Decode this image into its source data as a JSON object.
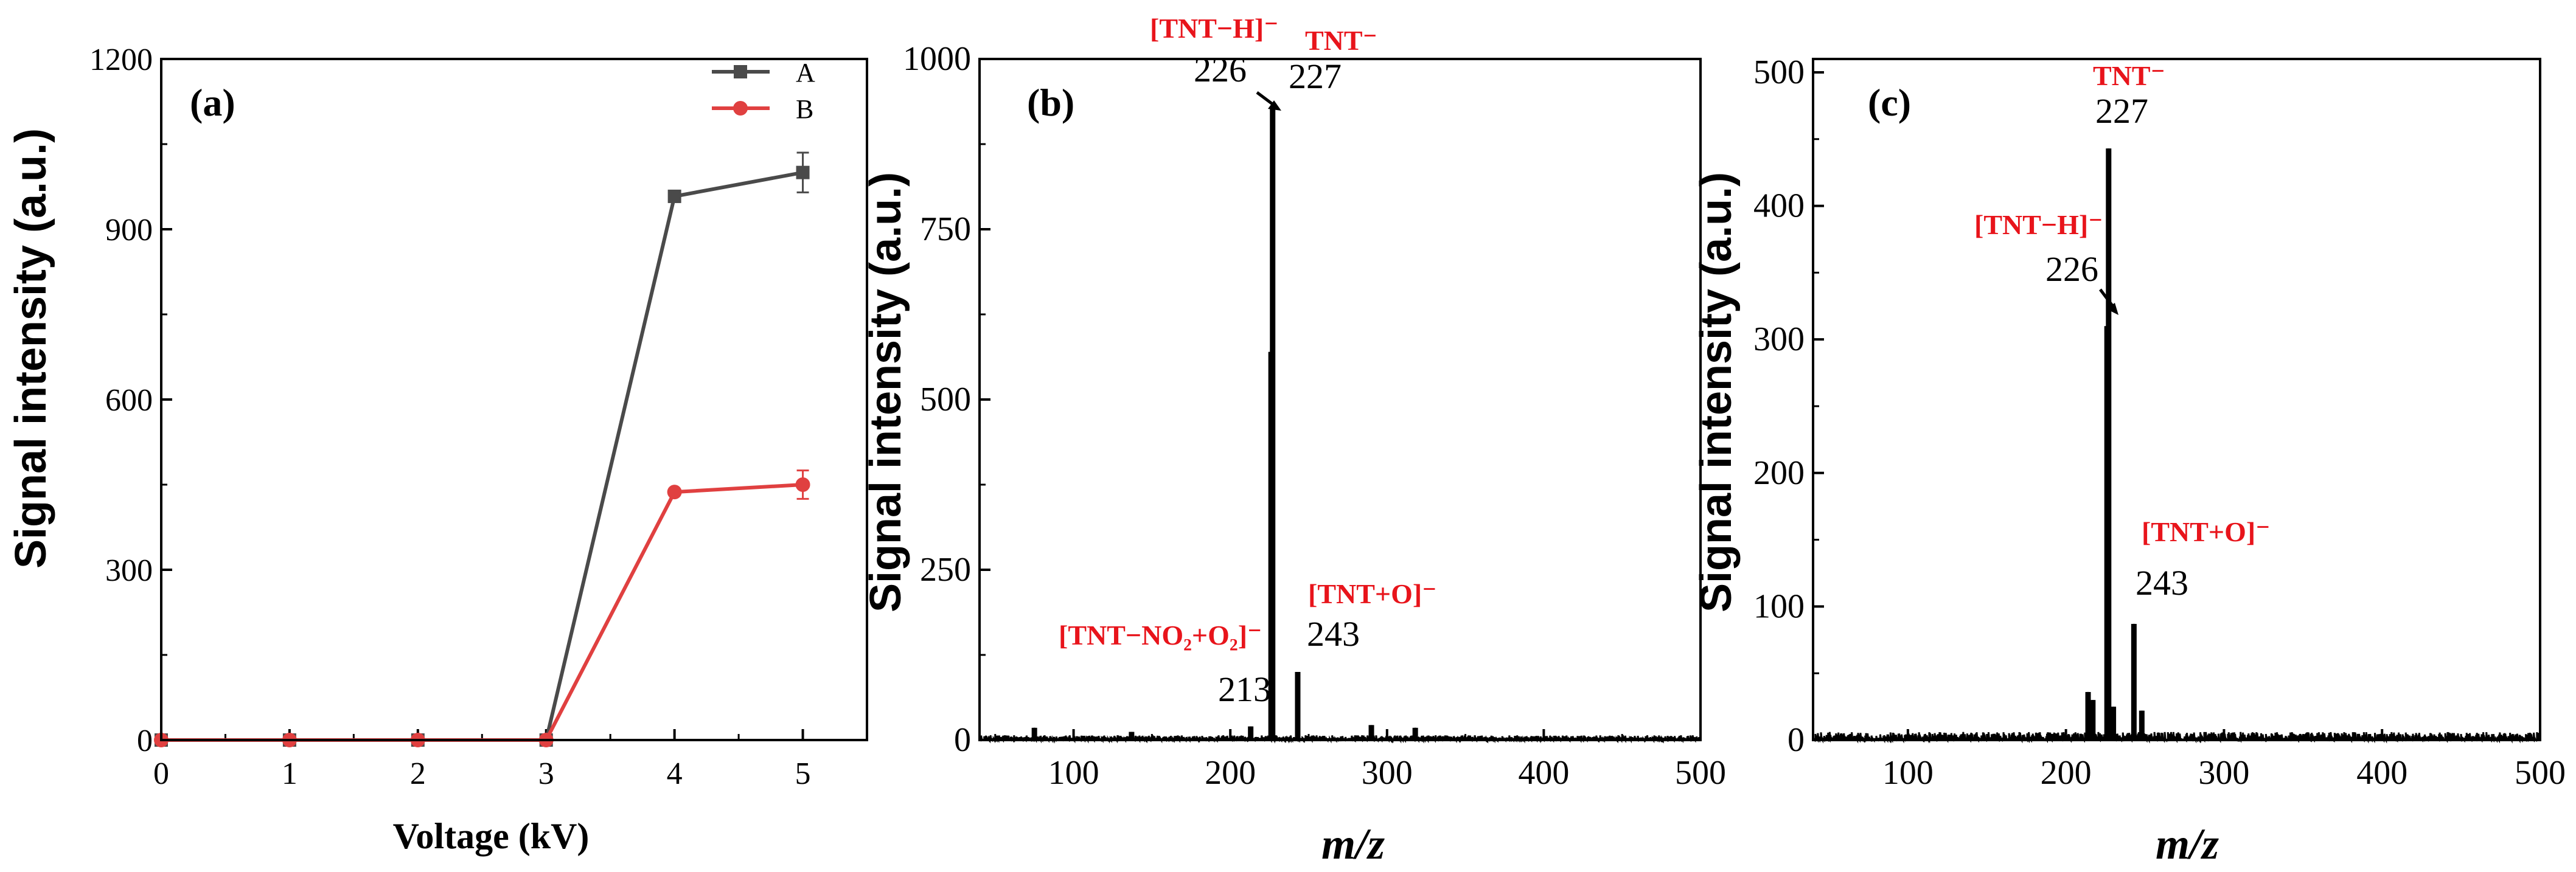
{
  "colors": {
    "axis": "#000000",
    "seriesA": "#4a4a4a",
    "seriesB": "#e04040",
    "annotation": "#e8141b",
    "spectrum": "#000000"
  },
  "chart_data": [
    {
      "type": "line",
      "panel_label": "(a)",
      "xlabel": "Voltage (kV)",
      "ylabel": "Signal intensity (a.u.)",
      "xlim": [
        0,
        5.5
      ],
      "ylim": [
        0,
        1200
      ],
      "x_ticks": [
        "0",
        "1",
        "2",
        "3",
        "4",
        "5"
      ],
      "y_ticks": [
        "0",
        "300",
        "600",
        "900",
        "1200"
      ],
      "x": [
        0,
        1,
        2,
        3,
        4,
        5
      ],
      "series": [
        {
          "name": "A",
          "marker": "square",
          "values": [
            0,
            0,
            0,
            0,
            958,
            1000
          ],
          "errors": [
            0,
            0,
            0,
            0,
            10,
            35
          ]
        },
        {
          "name": "B",
          "marker": "circle",
          "values": [
            0,
            0,
            0,
            0,
            437,
            450
          ],
          "errors": [
            0,
            0,
            0,
            0,
            5,
            25
          ]
        }
      ],
      "legend": {
        "position": "top-right",
        "entries": [
          "A",
          "B"
        ]
      }
    },
    {
      "type": "line",
      "panel_label": "(b)",
      "xlabel": "m/z",
      "ylabel": "Signal intensity (a.u.)",
      "xlim": [
        40,
        500
      ],
      "ylim": [
        0,
        1000
      ],
      "x_ticks": [
        "100",
        "200",
        "300",
        "400",
        "500"
      ],
      "y_ticks": [
        "0",
        "250",
        "500",
        "750",
        "1000"
      ],
      "noise_level": 7,
      "peaks": [
        {
          "mz": 75,
          "intensity": 18
        },
        {
          "mz": 137,
          "intensity": 12
        },
        {
          "mz": 213,
          "intensity": 20
        },
        {
          "mz": 226,
          "intensity": 570
        },
        {
          "mz": 227,
          "intensity": 930
        },
        {
          "mz": 243,
          "intensity": 100
        },
        {
          "mz": 290,
          "intensity": 22
        },
        {
          "mz": 318,
          "intensity": 18
        }
      ],
      "annotations": [
        {
          "label": "[TNT−H]⁻",
          "value": "226",
          "mz": 226
        },
        {
          "label": "TNT⁻",
          "value": "227",
          "mz": 227
        },
        {
          "label": "[TNT+O]⁻",
          "value": "243",
          "mz": 243
        },
        {
          "label": "[TNT−NO₂+O₂]⁻",
          "value": "213",
          "mz": 213
        }
      ]
    },
    {
      "type": "line",
      "panel_label": "(c)",
      "xlabel": "m/z",
      "ylabel": "Signal intensity (a.u.)",
      "xlim": [
        40,
        500
      ],
      "ylim": [
        0,
        510
      ],
      "x_ticks": [
        "100",
        "200",
        "300",
        "400",
        "500"
      ],
      "y_ticks": [
        "0",
        "100",
        "200",
        "300",
        "400",
        "500"
      ],
      "noise_level": 6,
      "peaks": [
        {
          "mz": 214,
          "intensity": 36
        },
        {
          "mz": 217,
          "intensity": 30
        },
        {
          "mz": 226,
          "intensity": 310
        },
        {
          "mz": 227,
          "intensity": 443
        },
        {
          "mz": 230,
          "intensity": 25
        },
        {
          "mz": 243,
          "intensity": 87
        },
        {
          "mz": 248,
          "intensity": 22
        }
      ],
      "annotations": [
        {
          "label": "TNT⁻",
          "value": "227",
          "mz": 227
        },
        {
          "label": "[TNT−H]⁻",
          "value": "226",
          "mz": 226
        },
        {
          "label": "[TNT+O]⁻",
          "value": "243",
          "mz": 243
        }
      ]
    }
  ]
}
